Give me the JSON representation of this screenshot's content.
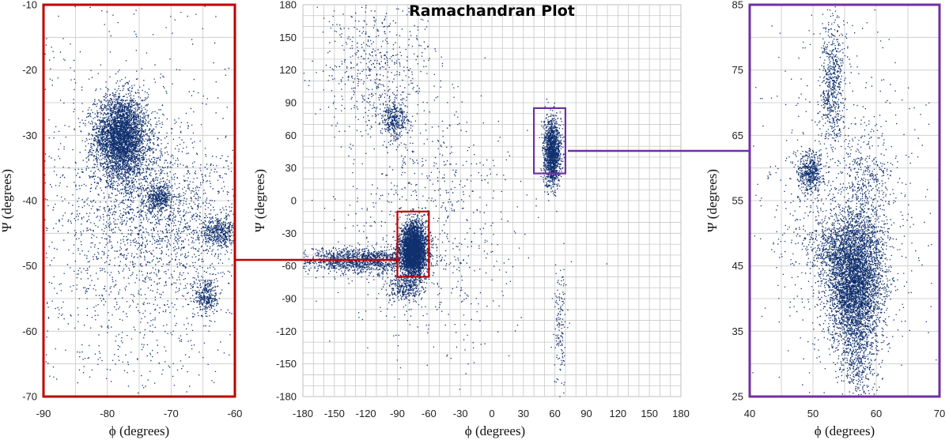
{
  "chart_data": [
    {
      "id": "left",
      "type": "scatter",
      "title": "",
      "xlabel": "ϕ (degrees)",
      "ylabel": "Ψ (degrees)",
      "xlim": [
        -90,
        -60
      ],
      "ylim": [
        -70,
        -10
      ],
      "xticks": [
        -90,
        -80,
        -70,
        -60
      ],
      "xtick_labels": [
        "-90",
        "-80",
        "-70",
        "-60"
      ],
      "yticks": [
        -70,
        -60,
        -50,
        -40,
        -30,
        -20,
        -10
      ],
      "ytick_labels": [
        "-70",
        "-60",
        "-50",
        "-40",
        "-30",
        "-20",
        "-10"
      ],
      "grid_step": [
        5,
        5
      ],
      "frame_color": "#c00000",
      "clusters": [
        {
          "phi": -78,
          "psi": -30,
          "sd_phi": 2.0,
          "sd_psi": 3.0,
          "n": 3200
        },
        {
          "phi": -76.5,
          "psi": -34,
          "sd_phi": 2.5,
          "sd_psi": 4.5,
          "n": 800
        },
        {
          "phi": -72,
          "psi": -39.5,
          "sd_phi": 1.0,
          "sd_psi": 1.0,
          "n": 350
        },
        {
          "phi": -62.5,
          "psi": -44.8,
          "sd_phi": 1.4,
          "sd_psi": 1.2,
          "n": 450
        },
        {
          "phi": -64.5,
          "psi": -54.5,
          "sd_phi": 0.9,
          "sd_psi": 1.6,
          "n": 350
        },
        {
          "phi": -70,
          "psi": -42,
          "sd_phi": 6.0,
          "sd_psi": 5.0,
          "n": 900
        },
        {
          "phi": -76,
          "psi": -45,
          "sd_phi": 8.0,
          "sd_psi": 12.0,
          "n": 1300
        },
        {
          "phi": -75,
          "psi": -40,
          "sd_phi": 20.0,
          "sd_psi": 25.0,
          "n": 800
        }
      ]
    },
    {
      "id": "center",
      "type": "scatter",
      "title": "Ramachandran Plot",
      "xlabel": "ϕ (degrees)",
      "ylabel": "Ψ (degrees)",
      "xlim": [
        -180,
        180
      ],
      "ylim": [
        -180,
        180
      ],
      "xticks": [
        -180,
        -150,
        -120,
        -90,
        -60,
        -30,
        0,
        30,
        60,
        90,
        120,
        150,
        180
      ],
      "xtick_labels": [
        "-180",
        "-150",
        "-120",
        "-90",
        "-60",
        "-30",
        "0",
        "30",
        "60",
        "90",
        "120",
        "150",
        "180"
      ],
      "yticks": [
        -180,
        -150,
        -120,
        -90,
        -60,
        -30,
        0,
        30,
        60,
        90,
        120,
        150,
        180
      ],
      "ytick_labels": [
        "-180",
        "-150",
        "-120",
        "-90",
        "-60",
        "-30",
        "0",
        "30",
        "60",
        "90",
        "120",
        "150",
        "180"
      ],
      "grid_step": [
        10,
        10
      ],
      "zoom_boxes": [
        {
          "name": "alpha-helix-region",
          "xlim": [
            -90,
            -60
          ],
          "ylim": [
            -70,
            -10
          ],
          "color": "#c00000"
        },
        {
          "name": "left-handed-region",
          "xlim": [
            40,
            70
          ],
          "ylim": [
            25,
            85
          ],
          "color": "#7030a0"
        }
      ],
      "clusters": [
        {
          "phi": -75,
          "psi": -45,
          "sd_phi": 6.0,
          "sd_psi": 12.0,
          "n": 3500
        },
        {
          "phi": -125,
          "psi": -55,
          "sd_phi": 30.0,
          "sd_psi": 6.0,
          "n": 1400
        },
        {
          "phi": -110,
          "psi": 120,
          "sd_phi": 28.0,
          "sd_psi": 35.0,
          "n": 600
        },
        {
          "phi": -93,
          "psi": 75,
          "sd_phi": 6.0,
          "sd_psi": 8.0,
          "n": 350
        },
        {
          "phi": 57,
          "psi": 45,
          "sd_phi": 4.0,
          "sd_psi": 15.0,
          "n": 1500
        },
        {
          "phi": 65,
          "psi": -115,
          "sd_phi": 3.0,
          "sd_psi": 25.0,
          "n": 150
        },
        {
          "phi": -85,
          "psi": -80,
          "sd_phi": 8.0,
          "sd_psi": 6.0,
          "n": 300
        },
        {
          "phi": -60,
          "psi": -20,
          "sd_phi": 40.0,
          "sd_psi": 60.0,
          "n": 700
        }
      ]
    },
    {
      "id": "right",
      "type": "scatter",
      "title": "",
      "xlabel": "ϕ (degrees)",
      "ylabel": "Ψ (degrees)",
      "xlim": [
        40,
        70
      ],
      "ylim": [
        25,
        85
      ],
      "xticks": [
        40,
        50,
        60,
        70
      ],
      "xtick_labels": [
        "40",
        "50",
        "60",
        "70"
      ],
      "yticks": [
        25,
        35,
        45,
        55,
        65,
        75,
        85
      ],
      "ytick_labels": [
        "25",
        "35",
        "45",
        "55",
        "65",
        "75",
        "85"
      ],
      "grid_step": [
        5,
        5
      ],
      "frame_color": "#7030a0",
      "clusters": [
        {
          "phi": 56.5,
          "psi": 42,
          "sd_phi": 2.2,
          "sd_psi": 5.0,
          "n": 4000
        },
        {
          "phi": 54.5,
          "psi": 48,
          "sd_phi": 3.0,
          "sd_psi": 3.0,
          "n": 900
        },
        {
          "phi": 49.5,
          "psi": 59.5,
          "sd_phi": 1.0,
          "sd_psi": 1.5,
          "n": 500
        },
        {
          "phi": 53,
          "psi": 73,
          "sd_phi": 1.0,
          "sd_psi": 5.0,
          "n": 600
        },
        {
          "phi": 58.5,
          "psi": 56,
          "sd_phi": 2.0,
          "sd_psi": 5.0,
          "n": 450
        },
        {
          "phi": 57,
          "psi": 30,
          "sd_phi": 1.5,
          "sd_psi": 3.0,
          "n": 350
        },
        {
          "phi": 55,
          "psi": 55,
          "sd_phi": 7.0,
          "sd_psi": 14.0,
          "n": 700
        }
      ]
    }
  ],
  "colors": {
    "points": "#0f2f6e",
    "grid": "#c8c8c8",
    "axis": "#bfbfbf",
    "zoom_red": "#c00000",
    "zoom_purple": "#7030a0"
  }
}
